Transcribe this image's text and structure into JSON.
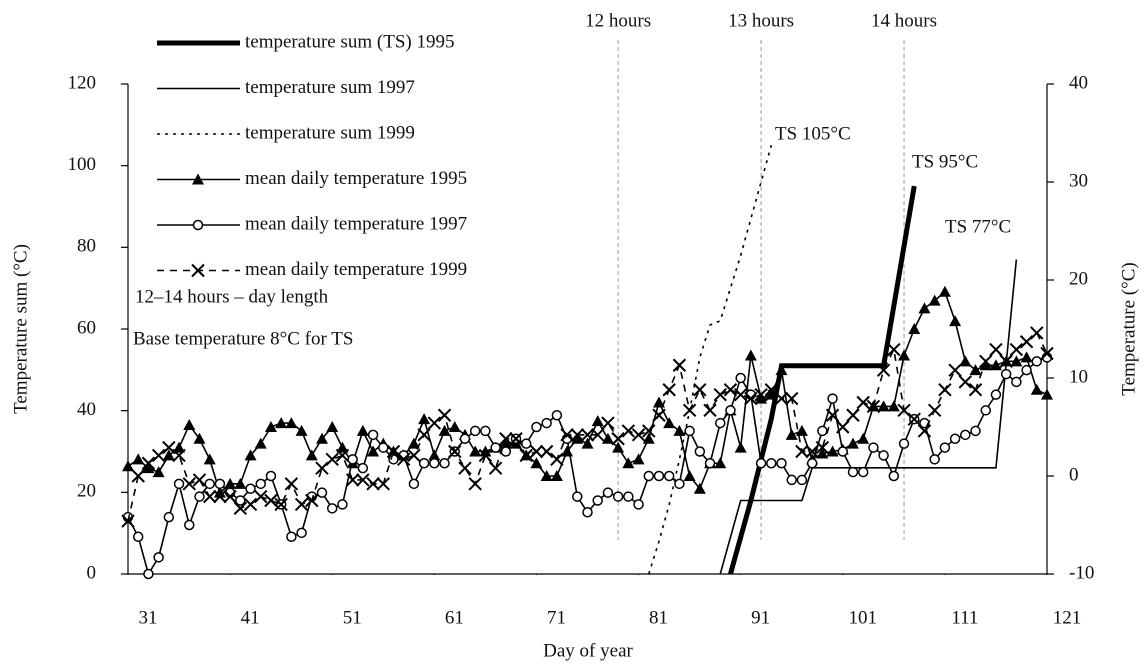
{
  "chart_data": {
    "type": "line",
    "x_label": "Day of year",
    "y_label": "Temperature sum (°C)",
    "y2_label": "Temperature (°C)",
    "xlim": [
      31,
      121
    ],
    "xticks": [
      31,
      41,
      51,
      61,
      71,
      81,
      91,
      101,
      111,
      121
    ],
    "ylim": [
      0,
      120
    ],
    "yticks": [
      0,
      20,
      40,
      60,
      80,
      100,
      120
    ],
    "y2lim": [
      -10,
      40
    ],
    "y2ticks": [
      -10,
      0,
      10,
      20,
      30,
      40
    ],
    "x": [
      31,
      32,
      33,
      34,
      35,
      36,
      37,
      38,
      39,
      40,
      41,
      42,
      43,
      44,
      45,
      46,
      47,
      48,
      49,
      50,
      51,
      52,
      53,
      54,
      55,
      56,
      57,
      58,
      59,
      60,
      61,
      62,
      63,
      64,
      65,
      66,
      67,
      68,
      69,
      70,
      71,
      72,
      73,
      74,
      75,
      76,
      77,
      78,
      79,
      80,
      81,
      82,
      83,
      84,
      85,
      86,
      87,
      88,
      89,
      90,
      91,
      92,
      93,
      94,
      95,
      96,
      97,
      98,
      99,
      100,
      101,
      102,
      103,
      104,
      105,
      106,
      107,
      108,
      109,
      110,
      111,
      112,
      113,
      114,
      115,
      116,
      117,
      118,
      119,
      120,
      121
    ],
    "series": [
      {
        "name": "temperature sum (TS) 1995",
        "color": "#000000",
        "line": "thick",
        "dash": "solid",
        "x": [
          90,
          92,
          94,
          95,
          105,
          108
        ],
        "values": [
          0,
          18,
          38,
          51,
          51,
          95
        ]
      },
      {
        "name": "temperature sum 1997",
        "color": "#000000",
        "line": "thin",
        "dash": "solid",
        "x": [
          89,
          91,
          97,
          98,
          116,
          118
        ],
        "values": [
          0,
          18,
          18,
          26,
          26,
          77
        ]
      },
      {
        "name": "temperature sum 1999",
        "color": "#000000",
        "line": "thin",
        "dash": "dotted",
        "x": [
          82,
          83,
          84,
          85,
          86,
          87,
          88,
          89,
          90,
          91,
          92,
          93,
          94
        ],
        "values": [
          0,
          8,
          17,
          28,
          40,
          53,
          61,
          62,
          70,
          78,
          87,
          96,
          105
        ]
      },
      {
        "name": "mean daily temperature 1995",
        "color": "#000000",
        "line": "thin",
        "dash": "solid",
        "marker": "triangle",
        "axis": "y2",
        "values": [
          1.0,
          1.7,
          0.8,
          0.4,
          2.1,
          2.9,
          5.2,
          3.8,
          1.7,
          -1.7,
          -0.8,
          -0.8,
          2.1,
          3.3,
          5.0,
          5.4,
          5.4,
          4.6,
          2.1,
          3.8,
          5.0,
          2.9,
          1.3,
          4.6,
          2.5,
          3.3,
          2.5,
          2.1,
          3.3,
          5.8,
          2.1,
          4.6,
          5.0,
          4.2,
          2.5,
          2.5,
          2.9,
          3.3,
          3.3,
          2.1,
          1.3,
          0.0,
          0.0,
          2.5,
          3.8,
          3.3,
          5.6,
          3.8,
          2.9,
          1.3,
          1.7,
          3.8,
          7.5,
          5.4,
          4.6,
          0.0,
          -1.3,
          1.3,
          1.3,
          6.7,
          2.9,
          12.3,
          7.9,
          8.3,
          10.8,
          4.2,
          4.6,
          1.7,
          2.3,
          2.5,
          2.7,
          3.3,
          3.8,
          7.1,
          7.1,
          7.1,
          12.3,
          15.0,
          17.1,
          17.9,
          18.8,
          15.8,
          11.7,
          10.8,
          11.3,
          11.3,
          11.7,
          11.7,
          12.1,
          8.8,
          8.3
        ]
      },
      {
        "name": "mean daily temperature 1997",
        "color": "#000000",
        "line": "thin",
        "dash": "solid",
        "marker": "circle",
        "axis": "y2",
        "values": [
          -4.2,
          -6.2,
          -10,
          -8.3,
          -4.2,
          -0.8,
          -5.0,
          -2.1,
          -0.8,
          -0.8,
          -1.7,
          -2.5,
          -1.3,
          -0.8,
          0.0,
          -2.9,
          -6.2,
          -5.8,
          -2.1,
          -1.7,
          -3.3,
          -2.9,
          1.7,
          0.8,
          4.2,
          2.9,
          1.7,
          2.1,
          -0.8,
          1.3,
          1.3,
          1.3,
          2.5,
          3.8,
          4.6,
          4.6,
          2.9,
          2.5,
          3.8,
          3.3,
          5.0,
          5.4,
          6.2,
          3.8,
          -2.1,
          -3.7,
          -2.5,
          -1.7,
          -2.1,
          -2.1,
          -2.9,
          0.0,
          0.0,
          0.0,
          -0.8,
          4.6,
          2.5,
          1.3,
          5.4,
          6.7,
          10.0,
          8.3,
          1.3,
          1.3,
          1.3,
          -0.4,
          -0.4,
          1.3,
          4.6,
          7.9,
          2.5,
          0.4,
          0.4,
          2.9,
          2.1,
          0.0,
          3.3,
          5.8,
          5.4,
          1.7,
          2.9,
          3.8,
          4.2,
          4.6,
          6.7,
          8.3,
          10.4,
          9.6,
          10.8,
          11.7,
          12.1
        ]
      },
      {
        "name": "mean daily temperature 1999",
        "color": "#000000",
        "line": "thin",
        "dash": "dashed",
        "marker": "cross",
        "axis": "y2",
        "values": [
          -4.6,
          0.0,
          1.3,
          2.1,
          2.9,
          2.1,
          -0.8,
          -0.4,
          -2.1,
          -2.1,
          -2.1,
          -3.3,
          -2.9,
          -2.1,
          -2.5,
          -2.9,
          -0.8,
          -2.9,
          -2.5,
          0.8,
          1.7,
          2.1,
          -0.4,
          -0.4,
          -0.8,
          -0.8,
          2.5,
          1.7,
          2.1,
          4.2,
          5.4,
          6.2,
          2.5,
          0.8,
          -0.8,
          2.1,
          0.8,
          3.8,
          3.8,
          2.1,
          2.5,
          2.5,
          1.7,
          4.2,
          4.2,
          4.2,
          4.2,
          5.4,
          3.8,
          4.6,
          4.2,
          4.6,
          6.2,
          8.8,
          11.3,
          6.7,
          8.8,
          6.7,
          8.3,
          8.8,
          8.3,
          7.9,
          8.3,
          8.8,
          7.9,
          7.9,
          2.5,
          2.5,
          2.9,
          6.2,
          5.0,
          6.2,
          7.5,
          7.1,
          10.8,
          12.9,
          6.7,
          5.8,
          4.6,
          6.7,
          8.8,
          10.8,
          9.6,
          8.8,
          11.7,
          12.9,
          11.7,
          12.9,
          13.7,
          14.6,
          12.5
        ]
      }
    ],
    "vlines": [
      {
        "x": 79,
        "label": "12 hours"
      },
      {
        "x": 93,
        "label": "13 hours"
      },
      {
        "x": 107,
        "label": "14 hours"
      }
    ],
    "annotations": [
      "TS 105°C",
      "TS 95°C",
      "TS 77°C",
      "12–14 hours – day length",
      "Base temperature 8°C for TS"
    ]
  }
}
